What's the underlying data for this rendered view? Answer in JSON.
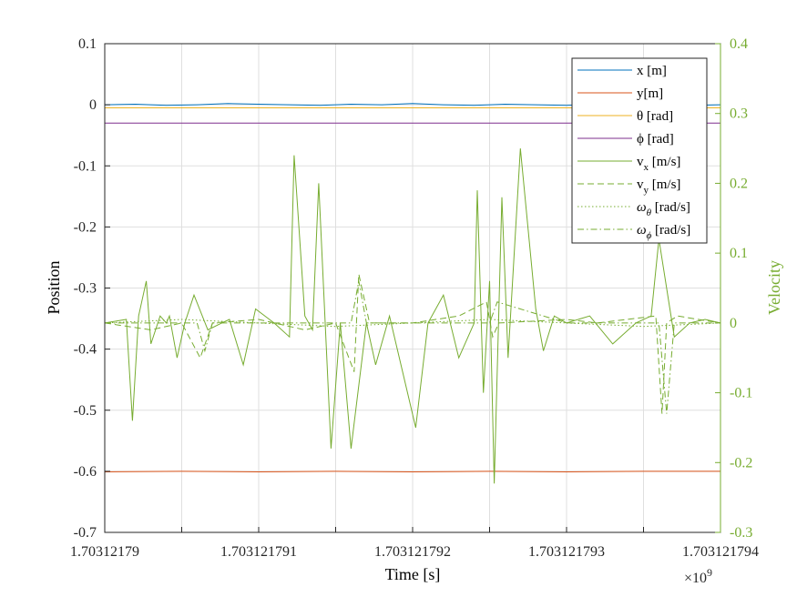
{
  "chart_data": {
    "type": "line",
    "xlabel": "Time [s]",
    "ylabel_left": "Position",
    "ylabel_right": "Velocity",
    "x_exponent_label": "×10",
    "x_exponent_power": "9",
    "xlim": [
      1703121790,
      1703121794
    ],
    "ylim_left": [
      -0.7,
      0.1
    ],
    "ylim_right": [
      -0.3,
      0.4
    ],
    "x_tick_values": [
      1703121790,
      1703121791,
      1703121792,
      1703121793,
      1703121794
    ],
    "x_tick_labels": [
      "1.70312179",
      "1.703121791",
      "1.703121792",
      "1.703121793",
      "1.703121794"
    ],
    "y_left_tick_values": [
      0.1,
      0,
      -0.1,
      -0.2,
      -0.3,
      -0.4,
      -0.5,
      -0.6,
      -0.7
    ],
    "y_left_tick_labels": [
      "0.1",
      "0",
      "-0.1",
      "-0.2",
      "-0.3",
      "-0.4",
      "-0.5",
      "-0.6",
      "-0.7"
    ],
    "y_right_tick_values": [
      0.4,
      0.3,
      0.2,
      0.1,
      0,
      -0.1,
      -0.2,
      -0.3
    ],
    "y_right_tick_labels": [
      "0.4",
      "0.3",
      "0.2",
      "0.1",
      "0",
      "-0.1",
      "-0.2",
      "-0.3"
    ],
    "grid": true,
    "legend_position": "top-right",
    "colors": {
      "x": "#0072bd",
      "y": "#d95319",
      "theta": "#edb120",
      "phi": "#7e2f8e",
      "velocity": "#77ac30",
      "right_axis": "#77ac30"
    },
    "series": [
      {
        "key": "x",
        "name": "x [m]",
        "axis": "left",
        "style": "solid",
        "color": "#0072bd",
        "x": [
          1703121790.0,
          1703121790.2,
          1703121790.4,
          1703121790.6,
          1703121790.8,
          1703121791.0,
          1703121791.2,
          1703121791.4,
          1703121791.6,
          1703121791.8,
          1703121792.0,
          1703121792.2,
          1703121792.4,
          1703121792.6,
          1703121792.8,
          1703121793.0,
          1703121793.2,
          1703121793.4,
          1703121793.6,
          1703121793.8,
          1703121794.0
        ],
        "y": [
          0.0,
          0.001,
          -0.001,
          0.0,
          0.002,
          0.001,
          0.0,
          -0.001,
          0.001,
          0.0,
          0.002,
          0.0,
          -0.001,
          0.001,
          0.0,
          -0.001,
          0.001,
          0.0,
          0.0,
          -0.001,
          0.0
        ]
      },
      {
        "key": "y",
        "name": "y[m]",
        "axis": "left",
        "style": "solid",
        "color": "#d95319",
        "x": [
          1703121790.0,
          1703121790.5,
          1703121791.0,
          1703121791.5,
          1703121792.0,
          1703121792.5,
          1703121793.0,
          1703121793.5,
          1703121794.0
        ],
        "y": [
          -0.601,
          -0.6,
          -0.601,
          -0.6,
          -0.601,
          -0.6,
          -0.601,
          -0.6,
          -0.6
        ]
      },
      {
        "key": "theta",
        "name": "θ [rad]",
        "axis": "left",
        "style": "solid",
        "color": "#edb120",
        "x": [
          1703121790.0,
          1703121794.0
        ],
        "y": [
          -0.005,
          -0.005
        ]
      },
      {
        "key": "phi",
        "name": "ϕ [rad]",
        "axis": "left",
        "style": "solid",
        "color": "#7e2f8e",
        "x": [
          1703121790.0,
          1703121794.0
        ],
        "y": [
          -0.03,
          -0.03
        ]
      },
      {
        "key": "vx",
        "name": "v",
        "sub": "x",
        "unit": " [m/s]",
        "axis": "right",
        "style": "solid",
        "color": "#77ac30",
        "x": [
          1703121790.0,
          1703121790.14,
          1703121790.18,
          1703121790.22,
          1703121790.27,
          1703121790.3,
          1703121790.36,
          1703121790.4,
          1703121790.42,
          1703121790.47,
          1703121790.52,
          1703121790.58,
          1703121790.67,
          1703121790.76,
          1703121790.81,
          1703121790.9,
          1703121790.98,
          1703121791.1,
          1703121791.2,
          1703121791.23,
          1703121791.3,
          1703121791.35,
          1703121791.39,
          1703121791.47,
          1703121791.53,
          1703121791.6,
          1703121791.7,
          1703121791.76,
          1703121791.85,
          1703121792.02,
          1703121792.1,
          1703121792.2,
          1703121792.3,
          1703121792.4,
          1703121792.42,
          1703121792.46,
          1703121792.5,
          1703121792.53,
          1703121792.58,
          1703121792.62,
          1703121792.7,
          1703121792.8,
          1703121792.85,
          1703121792.92,
          1703121793.0,
          1703121793.15,
          1703121793.3,
          1703121793.45,
          1703121793.55,
          1703121793.6,
          1703121793.7,
          1703121793.8,
          1703121793.9,
          1703121794.0
        ],
        "y": [
          0.0,
          0.005,
          -0.14,
          0.01,
          0.06,
          -0.03,
          0.01,
          0.0,
          0.01,
          -0.05,
          0.0,
          0.04,
          -0.01,
          0.0,
          0.005,
          -0.06,
          0.02,
          0.0,
          -0.02,
          0.24,
          0.01,
          -0.01,
          0.2,
          -0.18,
          0.0,
          -0.18,
          0.0,
          -0.06,
          0.01,
          -0.15,
          0.0,
          0.04,
          -0.05,
          0.0,
          0.19,
          -0.1,
          0.06,
          -0.23,
          0.18,
          -0.05,
          0.25,
          0.02,
          -0.04,
          0.01,
          0.0,
          0.01,
          -0.03,
          0.0,
          0.01,
          0.12,
          -0.02,
          0.0,
          0.005,
          0.0
        ]
      },
      {
        "key": "vy",
        "name": "v",
        "sub": "y",
        "unit": " [m/s]",
        "axis": "right",
        "style": "dashed",
        "color": "#77ac30",
        "x": [
          1703121790.0,
          1703121790.3,
          1703121790.5,
          1703121790.62,
          1703121790.7,
          1703121791.0,
          1703121791.3,
          1703121791.5,
          1703121791.62,
          1703121791.65,
          1703121791.72,
          1703121792.0,
          1703121792.3,
          1703121792.48,
          1703121792.52,
          1703121792.56,
          1703121793.0,
          1703121793.2,
          1703121793.58,
          1703121793.62,
          1703121793.65,
          1703121793.72,
          1703121794.0
        ],
        "y": [
          0.0,
          -0.01,
          0.0,
          -0.05,
          0.0,
          0.005,
          -0.01,
          0.0,
          -0.07,
          0.07,
          0.0,
          0.0,
          0.01,
          0.03,
          -0.02,
          0.0,
          0.005,
          0.0,
          0.01,
          -0.13,
          0.0,
          0.01,
          0.0
        ]
      },
      {
        "key": "wtheta",
        "name": "ω",
        "sub": "θ",
        "unit": " [rad/s]",
        "axis": "right",
        "style": "dotted",
        "color": "#77ac30",
        "x": [
          1703121790.0,
          1703121790.5,
          1703121791.0,
          1703121791.5,
          1703121792.0,
          1703121792.5,
          1703121793.0,
          1703121793.5,
          1703121794.0
        ],
        "y": [
          0.0,
          0.005,
          0.0,
          -0.005,
          0.0,
          0.005,
          0.0,
          -0.005,
          0.0
        ]
      },
      {
        "key": "wphi",
        "name": "ω",
        "sub": "ϕ",
        "unit": " [rad/s]",
        "axis": "right",
        "style": "dashdot",
        "color": "#77ac30",
        "x": [
          1703121790.0,
          1703121790.6,
          1703121790.65,
          1703121790.7,
          1703121791.0,
          1703121791.6,
          1703121791.65,
          1703121791.7,
          1703121792.0,
          1703121792.5,
          1703121792.55,
          1703121793.0,
          1703121793.6,
          1703121793.65,
          1703121793.7,
          1703121794.0
        ],
        "y": [
          0.0,
          0.0,
          -0.04,
          0.0,
          0.0,
          0.0,
          0.06,
          0.0,
          0.0,
          0.0,
          0.03,
          0.0,
          0.0,
          -0.13,
          0.0,
          0.0
        ]
      }
    ]
  }
}
